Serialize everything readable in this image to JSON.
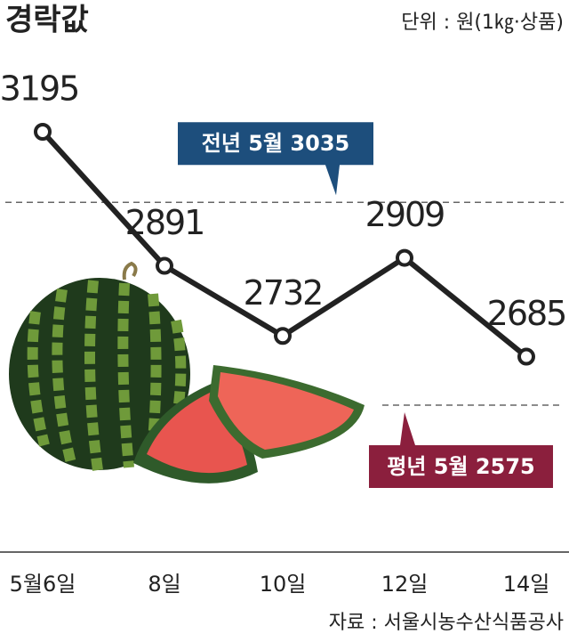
{
  "chart_data": {
    "type": "line",
    "title": "경락값",
    "subtitle": "단위 : 원(1㎏·상품)",
    "source": "자료 : 서울시농수산식품공사",
    "categories": [
      "5월6일",
      "8일",
      "10일",
      "12일",
      "14일"
    ],
    "values": [
      3195,
      2891,
      2732,
      2909,
      2685
    ],
    "color": "#222222",
    "reference_lines": [
      {
        "label": "전년 5월",
        "value": 3035,
        "color": "#1d4e7c"
      },
      {
        "label": "평년 5월",
        "value": 2575,
        "color": "#8b1f3d"
      }
    ]
  }
}
